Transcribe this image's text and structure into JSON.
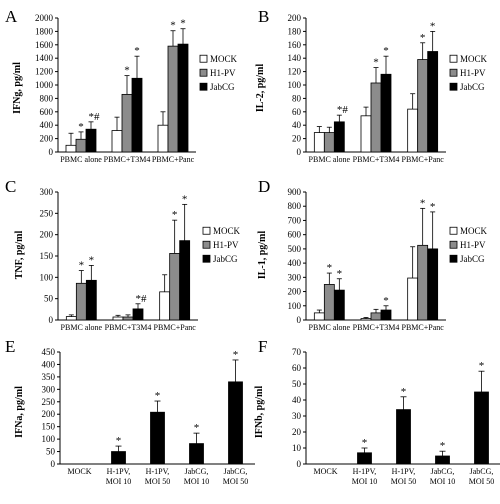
{
  "figure": {
    "panels": [
      {
        "letter": "A"
      },
      {
        "letter": "B"
      },
      {
        "letter": "C"
      },
      {
        "letter": "D"
      },
      {
        "letter": "E"
      },
      {
        "letter": "F"
      }
    ]
  },
  "colors": {
    "MOCK": "#ffffff",
    "H1-PV": "#8c8c8c",
    "JabCG": "#000000",
    "outline": "#000000"
  },
  "chart_data": [
    {
      "panel": "A",
      "type": "bar",
      "ylabel": "IFNg, pg/ml",
      "ylim": [
        0,
        2000
      ],
      "yticks": [
        0,
        200,
        400,
        600,
        800,
        1000,
        1200,
        1400,
        1600,
        1800,
        2000
      ],
      "categories": [
        "PBMC alone",
        "PBMC+T3M4",
        "PBMC+Panc"
      ],
      "legend": [
        "MOCK",
        "H1-PV",
        "JabCG"
      ],
      "series": [
        {
          "name": "MOCK",
          "values": [
            100,
            320,
            400
          ],
          "errors": [
            180,
            200,
            200
          ],
          "markers": [
            "",
            "",
            ""
          ]
        },
        {
          "name": "H1-PV",
          "values": [
            190,
            860,
            1580
          ],
          "errors": [
            110,
            280,
            230
          ],
          "markers": [
            "*",
            "*",
            "*"
          ]
        },
        {
          "name": "JabCG",
          "values": [
            340,
            1100,
            1610
          ],
          "errors": [
            110,
            330,
            230
          ],
          "markers": [
            "*#",
            "*",
            "*"
          ]
        }
      ]
    },
    {
      "panel": "B",
      "type": "bar",
      "ylabel": "IL-2, pg/ml",
      "ylim": [
        0,
        200
      ],
      "yticks": [
        0,
        20,
        40,
        60,
        80,
        100,
        120,
        140,
        160,
        180,
        200
      ],
      "categories": [
        "PBMC alone",
        "PBMC+T3M4",
        "PBMC+Panc"
      ],
      "legend": [
        "MOCK",
        "H1-PV",
        "JabCG"
      ],
      "series": [
        {
          "name": "MOCK",
          "values": [
            29,
            54,
            64
          ],
          "errors": [
            9,
            13,
            23
          ],
          "markers": [
            "",
            "",
            ""
          ]
        },
        {
          "name": "H1-PV",
          "values": [
            29,
            103,
            138
          ],
          "errors": [
            8,
            23,
            25
          ],
          "markers": [
            "",
            "*",
            "*"
          ]
        },
        {
          "name": "JabCG",
          "values": [
            45,
            116,
            150
          ],
          "errors": [
            10,
            27,
            30
          ],
          "markers": [
            "*#",
            "*",
            "*"
          ]
        }
      ]
    },
    {
      "panel": "C",
      "type": "bar",
      "ylabel": "TNF, pg/ml",
      "ylim": [
        0,
        300
      ],
      "yticks": [
        0,
        50,
        100,
        150,
        200,
        250,
        300
      ],
      "categories": [
        "PBMC alone",
        "PBMC+T3M4",
        "PBMC+Panc"
      ],
      "legend": [
        "MOCK",
        "H1-PV",
        "JabCG"
      ],
      "series": [
        {
          "name": "MOCK",
          "values": [
            8,
            7,
            66
          ],
          "errors": [
            4,
            4,
            40
          ],
          "markers": [
            "",
            "",
            ""
          ]
        },
        {
          "name": "H1-PV",
          "values": [
            86,
            7,
            156
          ],
          "errors": [
            30,
            5,
            78
          ],
          "markers": [
            "*",
            "",
            "*"
          ]
        },
        {
          "name": "JabCG",
          "values": [
            93,
            26,
            186
          ],
          "errors": [
            35,
            12,
            85
          ],
          "markers": [
            "*",
            "*#",
            "*"
          ]
        }
      ]
    },
    {
      "panel": "D",
      "type": "bar",
      "ylabel": "IL-1, pg/ml",
      "ylim": [
        0,
        900
      ],
      "yticks": [
        0,
        100,
        200,
        300,
        400,
        500,
        600,
        700,
        800,
        900
      ],
      "categories": [
        "PBMC alone",
        "PBMC+T3M4",
        "PBMC+Panc"
      ],
      "legend": [
        "MOCK",
        "H1-PV",
        "JabCG"
      ],
      "series": [
        {
          "name": "MOCK",
          "values": [
            50,
            10,
            295
          ],
          "errors": [
            20,
            8,
            220
          ],
          "markers": [
            "",
            "",
            ""
          ]
        },
        {
          "name": "H1-PV",
          "values": [
            250,
            50,
            525
          ],
          "errors": [
            80,
            25,
            260
          ],
          "markers": [
            "*",
            "",
            "*"
          ]
        },
        {
          "name": "JabCG",
          "values": [
            210,
            70,
            500
          ],
          "errors": [
            80,
            30,
            260
          ],
          "markers": [
            "*",
            "*",
            "*"
          ]
        }
      ]
    },
    {
      "panel": "E",
      "type": "bar",
      "ylabel": "IFNa, pg/ml",
      "ylim": [
        0,
        450
      ],
      "yticks": [
        0,
        50,
        100,
        150,
        200,
        250,
        300,
        350,
        400,
        450
      ],
      "categories": [
        "MOCK",
        "H-1PV,\nMOI 10",
        "H-1PV,\nMOI 50",
        "JabCG,\nMOI 10",
        "JabCG,\nMOI 50"
      ],
      "series": [
        {
          "values": [
            0,
            50,
            208,
            82,
            330
          ],
          "errors": [
            0,
            22,
            45,
            42,
            88
          ],
          "markers": [
            "",
            "*",
            "*",
            "*",
            "*"
          ]
        }
      ]
    },
    {
      "panel": "F",
      "type": "bar",
      "ylabel": "IFNb, pg/ml",
      "ylim": [
        0,
        70
      ],
      "yticks": [
        0,
        10,
        20,
        30,
        40,
        50,
        60,
        70
      ],
      "categories": [
        "MOCK",
        "H-1PV,\nMOI 10",
        "H-1PV,\nMOI 50",
        "JabCG,\nMOI 10",
        "JabCG,\nMOI 50"
      ],
      "series": [
        {
          "values": [
            0,
            7,
            34,
            5,
            45
          ],
          "errors": [
            0,
            3,
            8,
            3,
            13
          ],
          "markers": [
            "",
            "*",
            "*",
            "*",
            "*"
          ]
        }
      ]
    }
  ]
}
